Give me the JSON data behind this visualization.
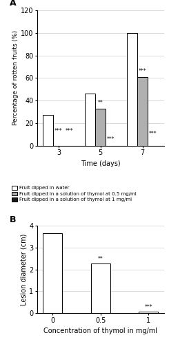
{
  "chart_a": {
    "title": "A",
    "groups": [
      3,
      5,
      7
    ],
    "xlabel": "Time (days)",
    "ylabel": "Percentage of rotten fruits (%)",
    "ylim": [
      0,
      120
    ],
    "yticks": [
      0,
      20,
      40,
      60,
      80,
      100,
      120
    ],
    "bar_width": 0.25,
    "series": {
      "water": [
        27,
        46,
        100
      ],
      "thymol05": [
        0,
        33,
        61
      ],
      "thymol1": [
        0,
        0,
        0
      ]
    },
    "colors": {
      "water": "#ffffff",
      "thymol05": "#b0b0b0",
      "thymol1": "#1a1a1a"
    },
    "ann_day3_05": "***",
    "ann_day3_1": "***",
    "ann_day5_05": "**",
    "ann_day5_1": "***",
    "ann_day7_05": "***",
    "ann_day7_1": "***",
    "legend": [
      "Fruit dipped in water",
      "Fruit dipped in a solution of thymol at 0.5 mg/ml",
      "Fruit dipped in a solution of thymol at 1 mg/ml"
    ]
  },
  "chart_b": {
    "title": "B",
    "categories": [
      "0",
      "0.5",
      "1"
    ],
    "xlabel": "Concentration of thymol in mg/ml",
    "ylabel": "Lesion diameter (cm)",
    "ylim": [
      0,
      4
    ],
    "yticks": [
      0,
      1,
      2,
      3,
      4
    ],
    "bar_width": 0.4,
    "values": [
      3.65,
      2.28,
      0.07
    ],
    "color": "#ffffff",
    "ann_05": "**",
    "ann_1": "***"
  }
}
